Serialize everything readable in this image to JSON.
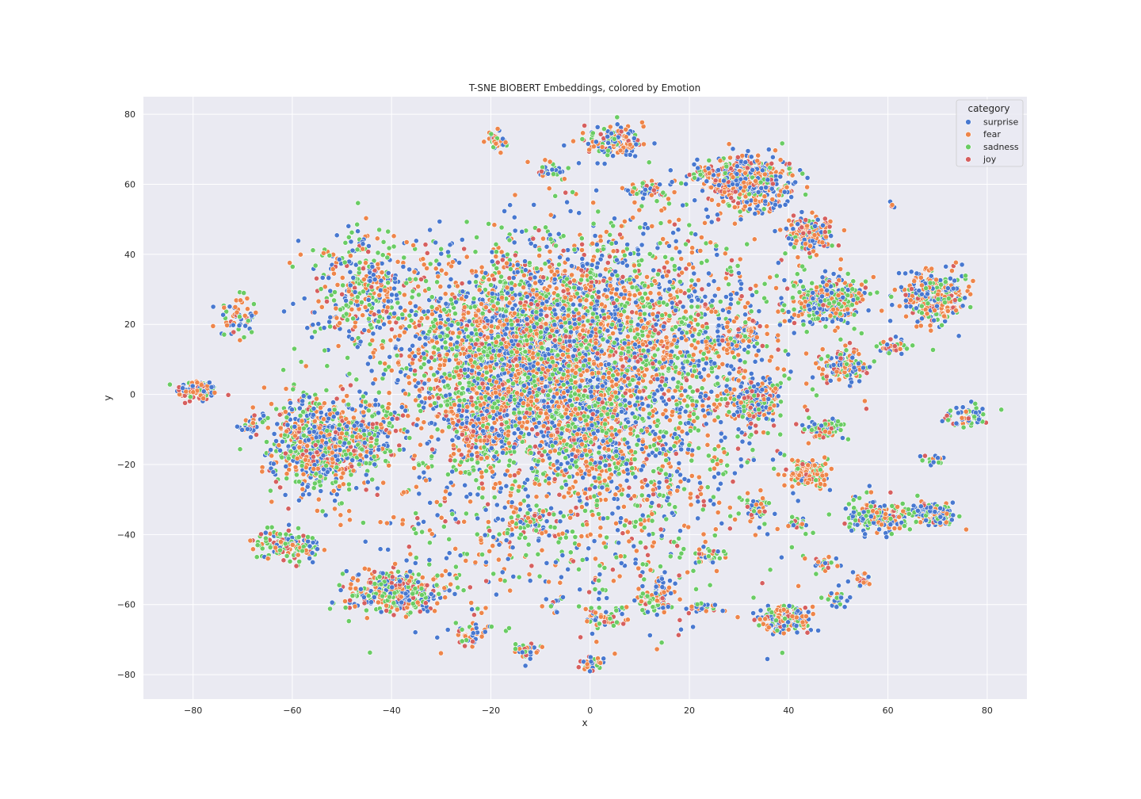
{
  "chart_data": {
    "type": "scatter",
    "title": "T-SNE BIOBERT Embeddings, colored by Emotion",
    "xlabel": "x",
    "ylabel": "y",
    "xlim": [
      -90,
      88
    ],
    "ylim": [
      -87,
      85
    ],
    "x_ticks": [
      -80,
      -60,
      -40,
      -20,
      0,
      20,
      40,
      60,
      80
    ],
    "y_ticks": [
      -80,
      -60,
      -40,
      -20,
      0,
      20,
      40,
      60,
      80
    ],
    "x_tick_labels": [
      "−80",
      "−60",
      "−40",
      "−20",
      "0",
      "20",
      "40",
      "60",
      "80"
    ],
    "y_tick_labels": [
      "−80",
      "−60",
      "−40",
      "−20",
      "0",
      "20",
      "40",
      "60",
      "80"
    ],
    "grid": true,
    "legend": {
      "title": "category",
      "placement": "top-right"
    },
    "series": [
      {
        "name": "surprise",
        "color": "#4878d0"
      },
      {
        "name": "fear",
        "color": "#ee854a"
      },
      {
        "name": "sadness",
        "color": "#6acc64"
      },
      {
        "name": "joy",
        "color": "#d65f5f"
      }
    ],
    "clusters": [
      {
        "cx": -79,
        "cy": 1,
        "sx": 2.2,
        "sy": 1.6,
        "n": 110,
        "mix": [
          0.35,
          0.3,
          0.2,
          0.15
        ]
      },
      {
        "cx": -71,
        "cy": 22,
        "sx": 2,
        "sy": 3,
        "n": 60,
        "mix": [
          0.3,
          0.25,
          0.35,
          0.1
        ]
      },
      {
        "cx": -68,
        "cy": -9,
        "sx": 1.5,
        "sy": 1.5,
        "n": 35,
        "mix": [
          0.4,
          0.2,
          0.2,
          0.2
        ]
      },
      {
        "cx": -55,
        "cy": -14,
        "sx": 4.5,
        "sy": 7,
        "n": 700,
        "mix": [
          0.3,
          0.3,
          0.3,
          0.1
        ]
      },
      {
        "cx": -45,
        "cy": -12,
        "sx": 3,
        "sy": 5,
        "n": 200,
        "mix": [
          0.35,
          0.3,
          0.25,
          0.1
        ]
      },
      {
        "cx": -61,
        "cy": -43,
        "sx": 3.5,
        "sy": 2,
        "n": 140,
        "mix": [
          0.2,
          0.25,
          0.4,
          0.15
        ]
      },
      {
        "cx": -39,
        "cy": -56,
        "sx": 5,
        "sy": 3,
        "n": 400,
        "mix": [
          0.25,
          0.3,
          0.3,
          0.15
        ]
      },
      {
        "cx": -24,
        "cy": -69,
        "sx": 1.5,
        "sy": 2,
        "n": 30,
        "mix": [
          0.4,
          0.4,
          0.1,
          0.1
        ]
      },
      {
        "cx": -13,
        "cy": -73,
        "sx": 1.5,
        "sy": 1.2,
        "n": 35,
        "mix": [
          0.35,
          0.3,
          0.2,
          0.15
        ]
      },
      {
        "cx": 1,
        "cy": -77,
        "sx": 1.5,
        "sy": 1,
        "n": 35,
        "mix": [
          0.35,
          0.3,
          0.25,
          0.1
        ]
      },
      {
        "cx": -19,
        "cy": 72,
        "sx": 1.3,
        "sy": 1.5,
        "n": 45,
        "mix": [
          0.3,
          0.35,
          0.25,
          0.1
        ]
      },
      {
        "cx": -8,
        "cy": 64,
        "sx": 1.5,
        "sy": 1.2,
        "n": 35,
        "mix": [
          0.4,
          0.2,
          0.3,
          0.1
        ]
      },
      {
        "cx": 5,
        "cy": 72,
        "sx": 3,
        "sy": 2,
        "n": 130,
        "mix": [
          0.35,
          0.4,
          0.15,
          0.1
        ]
      },
      {
        "cx": 11,
        "cy": 58,
        "sx": 2,
        "sy": 1.2,
        "n": 50,
        "mix": [
          0.3,
          0.3,
          0.2,
          0.2
        ]
      },
      {
        "cx": 23,
        "cy": 64,
        "sx": 1.3,
        "sy": 1.2,
        "n": 25,
        "mix": [
          0.3,
          0.35,
          0.2,
          0.15
        ]
      },
      {
        "cx": 32,
        "cy": 61,
        "sx": 4.5,
        "sy": 3.5,
        "n": 520,
        "mix": [
          0.35,
          0.35,
          0.15,
          0.15
        ]
      },
      {
        "cx": 44,
        "cy": 46,
        "sx": 2.2,
        "sy": 2.5,
        "n": 180,
        "mix": [
          0.25,
          0.4,
          0.15,
          0.2
        ]
      },
      {
        "cx": 48,
        "cy": 27,
        "sx": 3.5,
        "sy": 3.5,
        "n": 350,
        "mix": [
          0.35,
          0.25,
          0.3,
          0.1
        ]
      },
      {
        "cx": 69,
        "cy": 28,
        "sx": 3.5,
        "sy": 3.5,
        "n": 330,
        "mix": [
          0.3,
          0.35,
          0.25,
          0.1
        ]
      },
      {
        "cx": 51,
        "cy": 8,
        "sx": 2.2,
        "sy": 2,
        "n": 120,
        "mix": [
          0.3,
          0.4,
          0.15,
          0.15
        ]
      },
      {
        "cx": 61,
        "cy": 14,
        "sx": 1.5,
        "sy": 1.2,
        "n": 40,
        "mix": [
          0.35,
          0.35,
          0.2,
          0.1
        ]
      },
      {
        "cx": 33,
        "cy": -2,
        "sx": 2.5,
        "sy": 3,
        "n": 220,
        "mix": [
          0.35,
          0.25,
          0.3,
          0.1
        ]
      },
      {
        "cx": 30,
        "cy": 16,
        "sx": 1.8,
        "sy": 1.8,
        "n": 60,
        "mix": [
          0.35,
          0.3,
          0.25,
          0.1
        ]
      },
      {
        "cx": 47,
        "cy": -10,
        "sx": 2,
        "sy": 1.3,
        "n": 70,
        "mix": [
          0.3,
          0.2,
          0.4,
          0.1
        ]
      },
      {
        "cx": 44,
        "cy": -22,
        "sx": 2.2,
        "sy": 2.2,
        "n": 120,
        "mix": [
          0.15,
          0.55,
          0.2,
          0.1
        ]
      },
      {
        "cx": 58,
        "cy": -35,
        "sx": 3,
        "sy": 2.2,
        "n": 220,
        "mix": [
          0.35,
          0.25,
          0.3,
          0.1
        ]
      },
      {
        "cx": 69,
        "cy": -34,
        "sx": 2.5,
        "sy": 1.6,
        "n": 140,
        "mix": [
          0.4,
          0.2,
          0.3,
          0.1
        ]
      },
      {
        "cx": 39,
        "cy": -64,
        "sx": 3,
        "sy": 1.8,
        "n": 170,
        "mix": [
          0.3,
          0.35,
          0.25,
          0.1
        ]
      },
      {
        "cx": 76,
        "cy": -6,
        "sx": 2.2,
        "sy": 1.5,
        "n": 60,
        "mix": [
          0.35,
          0.15,
          0.4,
          0.1
        ]
      },
      {
        "cx": 47,
        "cy": -48,
        "sx": 1.5,
        "sy": 1,
        "n": 25,
        "mix": [
          0.3,
          0.3,
          0.3,
          0.1
        ]
      },
      {
        "cx": 55,
        "cy": -53,
        "sx": 1.5,
        "sy": 1,
        "n": 25,
        "mix": [
          0.35,
          0.35,
          0.15,
          0.15
        ]
      },
      {
        "cx": 50,
        "cy": -59,
        "sx": 1.2,
        "sy": 1,
        "n": 20,
        "mix": [
          0.4,
          0.2,
          0.3,
          0.1
        ]
      },
      {
        "cx": 3,
        "cy": -64,
        "sx": 2.5,
        "sy": 1.2,
        "n": 50,
        "mix": [
          0.3,
          0.35,
          0.2,
          0.15
        ]
      },
      {
        "cx": 13,
        "cy": -60,
        "sx": 2,
        "sy": 1.5,
        "n": 50,
        "mix": [
          0.3,
          0.25,
          0.3,
          0.15
        ]
      },
      {
        "cx": 23,
        "cy": -61,
        "sx": 2,
        "sy": 0.8,
        "n": 30,
        "mix": [
          0.4,
          0.3,
          0.2,
          0.1
        ]
      },
      {
        "cx": 14,
        "cy": -55,
        "sx": 1.5,
        "sy": 1.5,
        "n": 30,
        "mix": [
          0.35,
          0.35,
          0.15,
          0.15
        ]
      },
      {
        "cx": 34,
        "cy": -32,
        "sx": 1.3,
        "sy": 2,
        "n": 40,
        "mix": [
          0.4,
          0.2,
          0.3,
          0.1
        ]
      },
      {
        "cx": 24,
        "cy": -46,
        "sx": 1.5,
        "sy": 1.2,
        "n": 30,
        "mix": [
          0.3,
          0.2,
          0.4,
          0.1
        ]
      },
      {
        "cx": 42,
        "cy": -37,
        "sx": 1.2,
        "sy": 1,
        "n": 25,
        "mix": [
          0.4,
          0.2,
          0.3,
          0.1
        ]
      },
      {
        "cx": 69,
        "cy": -18,
        "sx": 1.2,
        "sy": 1,
        "n": 15,
        "mix": [
          0.5,
          0.2,
          0.2,
          0.1
        ]
      },
      {
        "cx": 61,
        "cy": 54,
        "sx": 0.4,
        "sy": 0.4,
        "n": 6,
        "mix": [
          0.3,
          0.1,
          0.3,
          0.3
        ]
      },
      {
        "cx": -22,
        "cy": -10,
        "sx": 3,
        "sy": 4,
        "n": 150,
        "mix": [
          0.3,
          0.35,
          0.2,
          0.15
        ]
      },
      {
        "cx": -2,
        "cy": -10,
        "sx": 4,
        "sy": 5,
        "n": 200,
        "mix": [
          0.4,
          0.25,
          0.25,
          0.1
        ]
      },
      {
        "cx": -12,
        "cy": -36,
        "sx": 2,
        "sy": 1.5,
        "n": 50,
        "mix": [
          0.4,
          0.25,
          0.2,
          0.15
        ]
      },
      {
        "cx": -45,
        "cy": 30,
        "sx": 6,
        "sy": 8,
        "n": 350,
        "mix": [
          0.3,
          0.3,
          0.3,
          0.1
        ]
      },
      {
        "cx": -14,
        "cy": 12,
        "sx": 13,
        "sy": 14,
        "n": 2600,
        "mix": [
          0.32,
          0.3,
          0.28,
          0.1
        ]
      },
      {
        "cx": 5,
        "cy": 5,
        "sx": 15,
        "sy": 22,
        "n": 1600,
        "mix": [
          0.3,
          0.3,
          0.3,
          0.1
        ]
      },
      {
        "cx": -5,
        "cy": -30,
        "sx": 22,
        "sy": 18,
        "n": 800,
        "mix": [
          0.28,
          0.3,
          0.32,
          0.1
        ]
      },
      {
        "cx": 15,
        "cy": 20,
        "sx": 14,
        "sy": 14,
        "n": 600,
        "mix": [
          0.3,
          0.35,
          0.25,
          0.1
        ]
      }
    ],
    "note_points_omitted": "approx. 13,000 individual points; values not recoverable"
  }
}
